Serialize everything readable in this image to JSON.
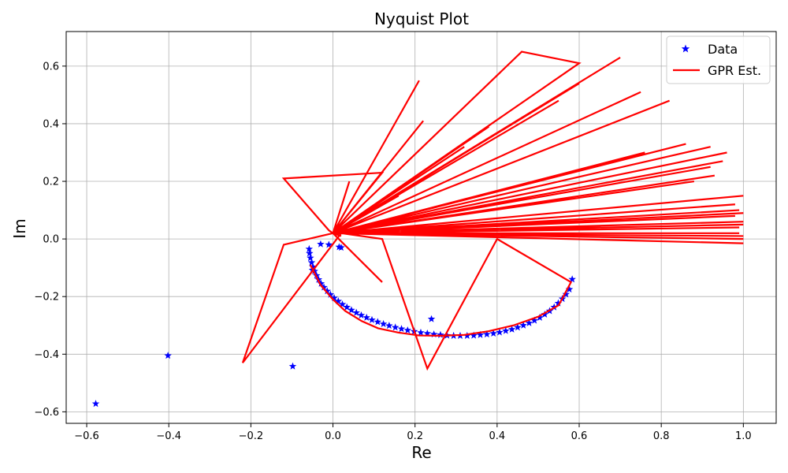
{
  "chart_data": {
    "type": "scatter",
    "title": "Nyquist Plot",
    "xlabel": "Re",
    "ylabel": "Im",
    "xlim": [
      -0.65,
      1.08
    ],
    "ylim": [
      -0.64,
      0.72
    ],
    "xticks": [
      -0.6,
      -0.4,
      -0.2,
      0.0,
      0.2,
      0.4,
      0.6,
      0.8,
      1.0
    ],
    "yticks": [
      -0.6,
      -0.4,
      -0.2,
      0.0,
      0.2,
      0.4,
      0.6
    ],
    "xtick_labels": [
      "−0.6",
      "−0.4",
      "−0.2",
      "0.0",
      "0.2",
      "0.4",
      "0.6",
      "0.8",
      "1.0"
    ],
    "ytick_labels": [
      "−0.6",
      "−0.4",
      "−0.2",
      "0.0",
      "0.2",
      "0.4",
      "0.6"
    ],
    "grid": true,
    "legend_position": "top-right",
    "colors": {
      "data": "#0000ff",
      "estimate": "#ff0000",
      "grid": "#b0b0b0"
    },
    "series": [
      {
        "name": "Data",
        "kind": "markers",
        "marker": "star",
        "x": [
          -0.058,
          -0.057,
          -0.055,
          -0.052,
          -0.049,
          -0.045,
          -0.04,
          -0.035,
          -0.029,
          -0.022,
          -0.014,
          -0.006,
          0.003,
          0.013,
          0.023,
          0.034,
          0.045,
          0.057,
          0.069,
          0.082,
          0.095,
          0.109,
          0.123,
          0.137,
          0.152,
          0.167,
          0.182,
          0.198,
          0.214,
          0.23,
          0.246,
          0.262,
          0.278,
          0.294,
          0.31,
          0.327,
          0.343,
          0.359,
          0.375,
          0.391,
          0.406,
          0.421,
          0.436,
          0.45,
          0.464,
          0.478,
          0.491,
          0.504,
          0.516,
          0.528,
          0.539,
          0.549,
          0.559,
          0.568,
          0.576,
          0.583,
          -0.578,
          -0.402,
          -0.098,
          0.24,
          -0.05,
          -0.01,
          0.015,
          -0.03,
          0.02
        ],
        "y": [
          -0.035,
          -0.05,
          -0.066,
          -0.082,
          -0.097,
          -0.112,
          -0.127,
          -0.141,
          -0.155,
          -0.168,
          -0.181,
          -0.193,
          -0.205,
          -0.216,
          -0.227,
          -0.237,
          -0.247,
          -0.256,
          -0.265,
          -0.273,
          -0.281,
          -0.288,
          -0.295,
          -0.301,
          -0.307,
          -0.312,
          -0.317,
          -0.321,
          -0.325,
          -0.328,
          -0.331,
          -0.333,
          -0.335,
          -0.336,
          -0.336,
          -0.336,
          -0.335,
          -0.333,
          -0.331,
          -0.328,
          -0.324,
          -0.319,
          -0.314,
          -0.307,
          -0.3,
          -0.292,
          -0.283,
          -0.273,
          -0.262,
          -0.25,
          -0.237,
          -0.223,
          -0.208,
          -0.192,
          -0.175,
          -0.14,
          -0.572,
          -0.405,
          -0.442,
          -0.278,
          -0.108,
          -0.02,
          -0.028,
          -0.018,
          -0.03
        ]
      },
      {
        "name": "GPR Est.",
        "kind": "line",
        "x": [
          -0.055,
          -0.03,
          0.0,
          0.03,
          0.07,
          0.11,
          0.16,
          0.21,
          0.26,
          0.32,
          0.38,
          0.44,
          0.5,
          0.55,
          0.58,
          0.4,
          0.23,
          0.12,
          0.02,
          -0.22,
          -0.12,
          0.0,
          0.12,
          0.0,
          0.6,
          0.46,
          0.0,
          0.82,
          0.0,
          0.92,
          0.0,
          1.0,
          0.0,
          0.98,
          0.0,
          0.7,
          0.0,
          0.88,
          0.0,
          0.98,
          0.0,
          0.21,
          0.0,
          0.93,
          0.0,
          0.99,
          0.0,
          1.0,
          0.0,
          0.86,
          0.0,
          1.0,
          0.0,
          0.92,
          0.0,
          0.6,
          0.0,
          0.22,
          0.0,
          0.75,
          0.0,
          0.96,
          0.0,
          0.32,
          0.0,
          1.0,
          0.0,
          0.2,
          0.0,
          0.99,
          0.0,
          0.04,
          0.0,
          1.0,
          0.0,
          0.76,
          0.0,
          0.16,
          0.0,
          1.0,
          0.0,
          0.12,
          -0.12,
          -0.01,
          0.0,
          0.72,
          0.0,
          1.0,
          0.0,
          0.38,
          0.0,
          0.95,
          0.0,
          0.55,
          0.0,
          0.99,
          0.0,
          0.99,
          0.0,
          0.02
        ],
        "y": [
          -0.09,
          -0.16,
          -0.21,
          -0.25,
          -0.285,
          -0.31,
          -0.325,
          -0.335,
          -0.336,
          -0.333,
          -0.32,
          -0.3,
          -0.27,
          -0.23,
          -0.15,
          0.0,
          -0.45,
          0.0,
          0.02,
          -0.43,
          -0.02,
          0.02,
          -0.15,
          0.02,
          0.61,
          0.65,
          0.02,
          0.48,
          0.02,
          0.32,
          0.02,
          0.15,
          0.02,
          0.08,
          0.02,
          0.63,
          0.02,
          0.2,
          0.02,
          0.12,
          0.02,
          0.55,
          0.02,
          0.22,
          0.02,
          0.04,
          0.02,
          0.01,
          0.02,
          0.33,
          0.02,
          0.0,
          0.02,
          0.25,
          0.02,
          0.54,
          0.02,
          0.41,
          0.02,
          0.51,
          0.02,
          0.3,
          0.02,
          0.32,
          0.02,
          0.05,
          0.02,
          0.19,
          0.02,
          0.1,
          0.02,
          0.2,
          0.02,
          -0.015,
          0.02,
          0.3,
          0.02,
          0.15,
          0.02,
          0.09,
          0.02,
          0.23,
          0.21,
          0.03,
          0.02,
          0.28,
          0.02,
          0.06,
          0.02,
          0.39,
          0.02,
          0.27,
          0.02,
          0.48,
          0.02,
          0.02,
          0.02,
          0.0,
          0.02,
          0.01
        ]
      }
    ]
  }
}
